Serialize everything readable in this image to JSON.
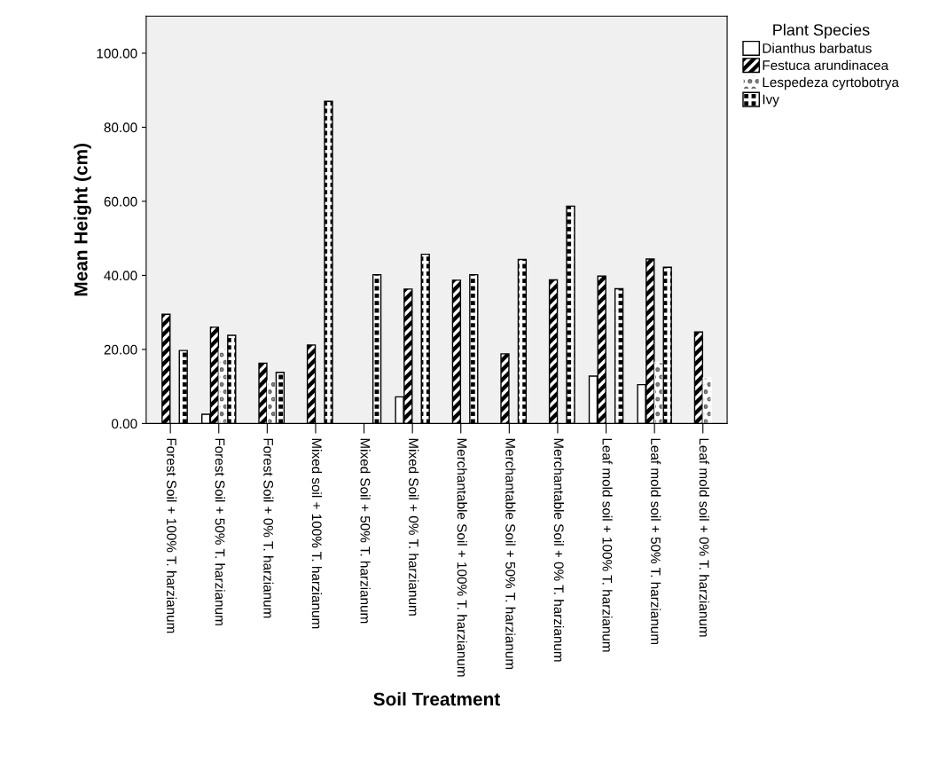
{
  "chart_data": {
    "type": "bar",
    "xlabel": "Soil Treatment",
    "ylabel": "Mean Height (cm)",
    "legend_title": "Plant Species",
    "legend": "top right",
    "grid": false,
    "categories": [
      "Forest Soil + 100% T. harzianum",
      "Forest Soil + 50% T. harzianum",
      "Forest Soil + 0% T. harzianum",
      "Mixed soil + 100% T. harzianum",
      "Mixed Soil + 50% T. harzianum",
      "Mixed Soil + 0% T. harzianum",
      "Merchantable Soil + 100% T. harzianum",
      "Merchantable Soil + 50% T. harzianum",
      "Merchantable Soil + 0% T. harzianum",
      "Leaf mold soil + 100% T. harzianum",
      "Leaf mold soil + 50% T. harzianum",
      "Leaf mold soil + 0% T. harzianum"
    ],
    "series": [
      {
        "name": "Dianthus barbatus",
        "color": "#ffffff",
        "values": [
          null,
          2.5,
          null,
          null,
          null,
          7.2,
          null,
          null,
          null,
          12.8,
          10.5,
          null
        ]
      },
      {
        "name": "Festuca arundinacea",
        "color": "#000000",
        "values": [
          29.5,
          26.0,
          16.3,
          21.2,
          null,
          36.3,
          38.7,
          18.8,
          38.8,
          39.8,
          44.4,
          24.7
        ]
      },
      {
        "name": "Lespedeza cyrtobotrya",
        "color": "#ffffff",
        "values": [
          null,
          20.2,
          11.5,
          null,
          null,
          null,
          null,
          null,
          null,
          null,
          16.5,
          12.3
        ]
      },
      {
        "name": "Ivy",
        "color": "#000000",
        "values": [
          19.7,
          23.8,
          13.8,
          87.0,
          40.2,
          45.7,
          40.2,
          44.3,
          58.7,
          36.4,
          42.2,
          null
        ]
      }
    ],
    "ylim": [
      0,
      110
    ],
    "yticks": [
      {
        "value": 0,
        "label": "0.00"
      },
      {
        "value": 20,
        "label": "20.00"
      },
      {
        "value": 40,
        "label": "40.00"
      },
      {
        "value": 60,
        "label": "60.00"
      },
      {
        "value": 80,
        "label": "80.00"
      },
      {
        "value": 100,
        "label": "100.00"
      }
    ]
  }
}
